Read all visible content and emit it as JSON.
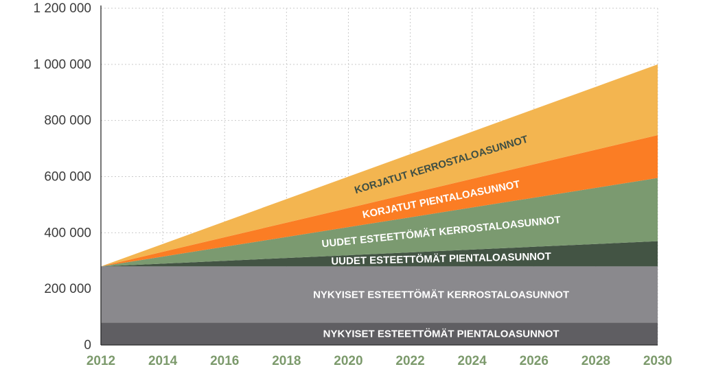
{
  "chart_data": {
    "type": "area",
    "stacked": true,
    "x": [
      2012,
      2014,
      2016,
      2018,
      2020,
      2022,
      2024,
      2026,
      2028,
      2030
    ],
    "x_tick_labels": [
      "2012",
      "2014",
      "2016",
      "2018",
      "2020",
      "2022",
      "2024",
      "2026",
      "2028",
      "2030"
    ],
    "y_tick_labels": [
      "0",
      "200 000",
      "400 000",
      "600 000",
      "800 000",
      "1 000 000",
      "1 200 000"
    ],
    "y_ticks": [
      0,
      200000,
      400000,
      600000,
      800000,
      1000000,
      1200000
    ],
    "ylim": [
      0,
      1200000
    ],
    "xlim": [
      2012,
      2030
    ],
    "grid": true,
    "series": [
      {
        "name": "NYKYISET ESTEETTÖMÄT PIENTALOASUNNOT",
        "color": "#5f5e62",
        "label_color": "#ffffff",
        "values": [
          80000,
          80000,
          80000,
          80000,
          80000,
          80000,
          80000,
          80000,
          80000,
          80000
        ]
      },
      {
        "name": "NYKYISET ESTEETTÖMÄT KERROSTALOASUNNOT",
        "color": "#8a898d",
        "label_color": "#ffffff",
        "values": [
          200000,
          200000,
          200000,
          200000,
          200000,
          200000,
          200000,
          200000,
          200000,
          200000
        ]
      },
      {
        "name": "UUDET ESTEETTÖMÄT PIENTALOASUNNOT",
        "color": "#435444",
        "label_color": "#ffffff",
        "values": [
          0,
          10000,
          20000,
          30000,
          40000,
          50000,
          60000,
          70000,
          80000,
          90000
        ]
      },
      {
        "name": "UUDET ESTEETTÖMÄT KERROSTALOASUNNOT",
        "color": "#7b9a70",
        "label_color": "#ffffff",
        "values": [
          0,
          25000,
          50000,
          75000,
          100000,
          125000,
          150000,
          175000,
          200000,
          225000
        ]
      },
      {
        "name": "KORJATUT PIENTALOASUNNOT",
        "color": "#fb7d24",
        "label_color": "#ffffff",
        "values": [
          0,
          17000,
          34000,
          51000,
          68000,
          85000,
          102000,
          119000,
          136000,
          153000
        ]
      },
      {
        "name": "KORJATUT KERROSTALOASUNNOT",
        "color": "#f3b550",
        "label_color": "#3f4f44",
        "values": [
          0,
          28000,
          56000,
          84000,
          112000,
          140000,
          168000,
          196000,
          224000,
          252000
        ]
      }
    ]
  }
}
